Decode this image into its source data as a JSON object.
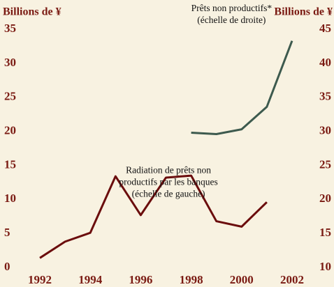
{
  "chart_data": {
    "type": "line",
    "ylabel": "Billions de ¥",
    "y2label": "Billions de ¥",
    "x": [
      1992,
      1993,
      1994,
      1995,
      1996,
      1997,
      1998,
      1999,
      2000,
      2001,
      2002
    ],
    "xlim": [
      1991.5,
      2002.5
    ],
    "xticks": [
      1992,
      1994,
      1996,
      1998,
      2000,
      2002
    ],
    "ylim": [
      0,
      35
    ],
    "yticks": [
      0,
      5,
      10,
      15,
      20,
      25,
      30,
      35
    ],
    "y2lim": [
      10,
      45
    ],
    "y2ticks": [
      10,
      15,
      20,
      25,
      30,
      35,
      40,
      45
    ],
    "grid": false,
    "series": [
      {
        "name": "Radiation de prêts non productifs par les banques (échelle de gauche)",
        "color": "#6b0d0d",
        "values": [
          1.4,
          3.8,
          5.1,
          13.4,
          7.7,
          13.2,
          13.5,
          6.8,
          6.0,
          9.6,
          null
        ]
      },
      {
        "name": "Prêts non productifs* (échelle de droite)",
        "color": "#3d5a4e",
        "axis": "y2",
        "values": [
          null,
          null,
          null,
          null,
          null,
          null,
          29.8,
          29.6,
          30.3,
          33.6,
          43.3
        ]
      }
    ],
    "annotations": [
      {
        "lines": [
          "Prêts non productifs*",
          "(échelle de droite)"
        ],
        "x": 1999.6,
        "y": 38
      },
      {
        "lines": [
          "Radiation de prêts non",
          "productifs par les banques",
          "(échelle de gauche)"
        ],
        "x": 1997.1,
        "y": 14.2
      }
    ]
  }
}
